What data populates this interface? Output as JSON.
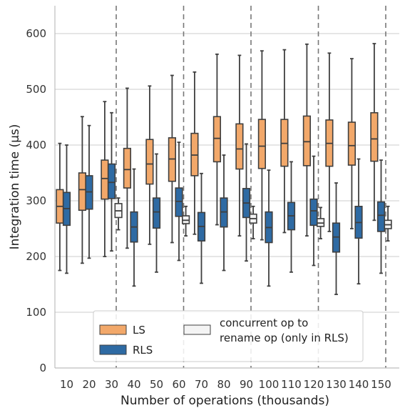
{
  "chart_data": {
    "type": "box",
    "xlabel": "Number of operations (thousands)",
    "ylabel": "Integration time (μs)",
    "ylim": [
      0,
      650
    ],
    "yticks": [
      0,
      100,
      200,
      300,
      400,
      500,
      600
    ],
    "categories": [
      "10",
      "20",
      "30",
      "40",
      "50",
      "60",
      "70",
      "80",
      "90",
      "100",
      "110",
      "120",
      "130",
      "140",
      "150"
    ],
    "grid": "horizontal",
    "legend_position": "bottom-center",
    "vertical_marker_categories": [
      "30",
      "60",
      "90",
      "120",
      "150"
    ],
    "colors": {
      "LS": "#f2a86a",
      "RLS": "#2e6aa3",
      "concurrent": "#f4f4f4",
      "edge": "#3f3f3f",
      "grid": "#cccccc",
      "marker_line": "#777777"
    },
    "series": [
      {
        "name": "LS",
        "boxes": [
          {
            "category": "10",
            "whislo": 175,
            "q1": 260,
            "med": 290,
            "q3": 320,
            "whishi": 403
          },
          {
            "category": "20",
            "whislo": 188,
            "q1": 283,
            "med": 320,
            "q3": 350,
            "whishi": 451
          },
          {
            "category": "30",
            "whislo": 200,
            "q1": 303,
            "med": 340,
            "q3": 373,
            "whishi": 478
          },
          {
            "category": "40",
            "whislo": 215,
            "q1": 323,
            "med": 356,
            "q3": 394,
            "whishi": 502
          },
          {
            "category": "50",
            "whislo": 222,
            "q1": 330,
            "med": 366,
            "q3": 410,
            "whishi": 506
          },
          {
            "category": "60",
            "whislo": 225,
            "q1": 335,
            "med": 375,
            "q3": 413,
            "whishi": 525
          },
          {
            "category": "70",
            "whislo": 240,
            "q1": 345,
            "med": 382,
            "q3": 421,
            "whishi": 531
          },
          {
            "category": "80",
            "whislo": 257,
            "q1": 370,
            "med": 412,
            "q3": 451,
            "whishi": 563
          },
          {
            "category": "90",
            "whislo": 237,
            "q1": 357,
            "med": 393,
            "q3": 438,
            "whishi": 561
          },
          {
            "category": "100",
            "whislo": 230,
            "q1": 358,
            "med": 398,
            "q3": 446,
            "whishi": 569
          },
          {
            "category": "110",
            "whislo": 243,
            "q1": 362,
            "med": 403,
            "q3": 446,
            "whishi": 571
          },
          {
            "category": "120",
            "whislo": 237,
            "q1": 363,
            "med": 406,
            "q3": 452,
            "whishi": 581
          },
          {
            "category": "130",
            "whislo": 245,
            "q1": 362,
            "med": 403,
            "q3": 445,
            "whishi": 565
          },
          {
            "category": "140",
            "whislo": 250,
            "q1": 364,
            "med": 399,
            "q3": 441,
            "whishi": 555
          },
          {
            "category": "150",
            "whislo": 265,
            "q1": 371,
            "med": 411,
            "q3": 458,
            "whishi": 582
          }
        ]
      },
      {
        "name": "RLS",
        "boxes": [
          {
            "category": "10",
            "whislo": 170,
            "q1": 256,
            "med": 286,
            "q3": 315,
            "whishi": 400
          },
          {
            "category": "20",
            "whislo": 197,
            "q1": 285,
            "med": 316,
            "q3": 345,
            "whishi": 435
          },
          {
            "category": "30",
            "whislo": 210,
            "q1": 304,
            "med": 333,
            "q3": 366,
            "whishi": 458
          },
          {
            "category": "40",
            "whislo": 147,
            "q1": 226,
            "med": 253,
            "q3": 280,
            "whishi": 357
          },
          {
            "category": "50",
            "whislo": 172,
            "q1": 251,
            "med": 280,
            "q3": 305,
            "whishi": 384
          },
          {
            "category": "60",
            "whislo": 193,
            "q1": 272,
            "med": 299,
            "q3": 323,
            "whishi": 405
          },
          {
            "category": "70",
            "whislo": 152,
            "q1": 228,
            "med": 254,
            "q3": 279,
            "whishi": 349
          },
          {
            "category": "80",
            "whislo": 175,
            "q1": 253,
            "med": 280,
            "q3": 305,
            "whishi": 382
          },
          {
            "category": "90",
            "whislo": 192,
            "q1": 270,
            "med": 296,
            "q3": 322,
            "whishi": 402
          },
          {
            "category": "100",
            "whislo": 147,
            "q1": 225,
            "med": 252,
            "q3": 280,
            "whishi": 355
          },
          {
            "category": "110",
            "whislo": 172,
            "q1": 248,
            "med": 273,
            "q3": 297,
            "whishi": 370
          },
          {
            "category": "120",
            "whislo": 184,
            "q1": 256,
            "med": 282,
            "q3": 303,
            "whishi": 380
          },
          {
            "category": "130",
            "whislo": 132,
            "q1": 208,
            "med": 235,
            "q3": 260,
            "whishi": 332
          },
          {
            "category": "140",
            "whislo": 151,
            "q1": 233,
            "med": 261,
            "q3": 290,
            "whishi": 375
          },
          {
            "category": "150",
            "whislo": 170,
            "q1": 245,
            "med": 274,
            "q3": 298,
            "whishi": 373
          }
        ]
      },
      {
        "name": "concurrent op to rename op (only in RLS)",
        "boxes": [
          {
            "category": "30",
            "whislo": 248,
            "q1": 270,
            "med": 282,
            "q3": 295,
            "whishi": 305
          },
          {
            "category": "60",
            "whislo": 237,
            "q1": 259,
            "med": 265,
            "q3": 273,
            "whishi": 290
          },
          {
            "category": "90",
            "whislo": 232,
            "q1": 260,
            "med": 268,
            "q3": 276,
            "whishi": 290
          },
          {
            "category": "120",
            "whislo": 232,
            "q1": 254,
            "med": 260,
            "q3": 268,
            "whishi": 288
          },
          {
            "category": "150",
            "whislo": 228,
            "q1": 250,
            "med": 257,
            "q3": 265,
            "whishi": 290
          }
        ]
      }
    ],
    "legend": {
      "items": [
        {
          "key": "LS",
          "label": "LS"
        },
        {
          "key": "RLS",
          "label": "RLS"
        },
        {
          "key": "concurrent",
          "label_line1": "concurrent op to",
          "label_line2": "rename op (only in RLS)"
        }
      ]
    }
  }
}
